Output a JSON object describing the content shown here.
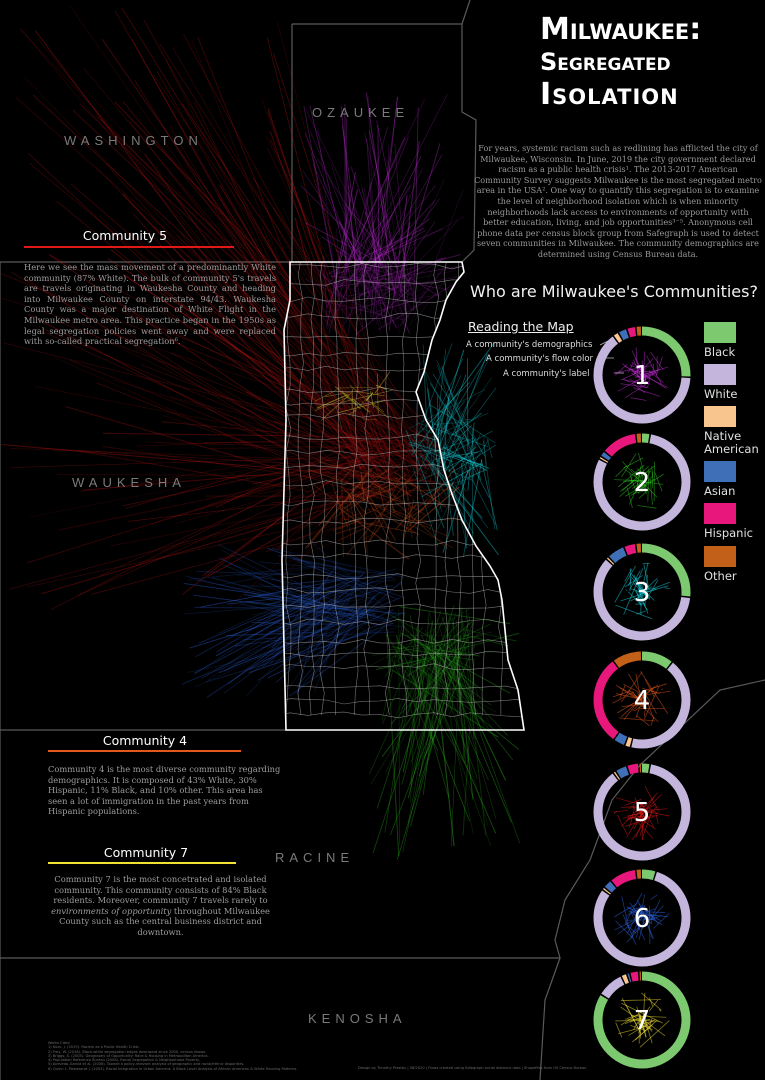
{
  "title": {
    "line1": "Milwaukee:",
    "line2": "Segregated",
    "line3": "Isolation"
  },
  "counties": {
    "ozaukee": "OZAUKEE",
    "washington": "WASHINGTON",
    "waukesha": "WAUKESHA",
    "racine": "RACINE",
    "kenosha": "KENOSHA"
  },
  "intro": "For years, systemic racism such as redlining has afflicted the city of Milwaukee, Wisconsin. In June, 2019 the city government declared racism as a public health crisis¹. The 2013-2017 American Community Survey suggests Milwaukee is the most segregated metro area in the USA². One way to quantify this segregation is to examine the level of neighborhood isolation which is when minority neighborhoods lack access to environments of opportunity with better education, living, and job opportunities³⁻⁵. Anonymous cell phone data per census block group from Safegraph is used to detect seven communities in Milwaukee. The community demographics are determined using Census Bureau data.",
  "community5": {
    "heading": "Community 5",
    "text": "Here we see the mass movement of a predominantly White community (87% White). The bulk of community 5's travels are travels originating in Waukesha County and heading into Milwaukee County on interstate 94/43. Waukesha County was a major destination of White Flight in the Milwaukee metro area. This practice began in the 1950s as legal segregation policies went away and were replaced with so-called practical segregation⁶."
  },
  "community4": {
    "heading": "Community 4",
    "text": "Community 4 is the most diverse community regarding demographics. It is composed of 43% White, 30% Hispanic, 11% Black, and 10% other. This area has seen a lot of immigration in the past years from Hispanic populations."
  },
  "community7": {
    "heading": "Community 7",
    "text_a": "Community 7 is the most concetrated and isolated community. This community consists of 84% Black residents. Moreover, community 7 travels rarely to ",
    "text_em": "environments of opportunity",
    "text_b": " throughout Milwaukee County such as the central business district and downtown."
  },
  "who_heading": "Who are Milwaukee's Communities?",
  "reading": {
    "heading": "Reading the Map",
    "demographics": "A community's demographics",
    "flow_color": "A community's flow color",
    "label": "A community's label"
  },
  "legend": [
    {
      "label": "Black",
      "color": "#7dc96f"
    },
    {
      "label": "White",
      "color": "#c4b5dc"
    },
    {
      "label": "Native American",
      "color": "#f9c58e"
    },
    {
      "label": "Asian",
      "color": "#3f6fb6"
    },
    {
      "label": "Hispanic",
      "color": "#e8177b"
    },
    {
      "label": "Other",
      "color": "#c2601a"
    }
  ],
  "communities": [
    {
      "label": "1",
      "flow_color": "#c12cd6",
      "demographics": {
        "Black": 0.26,
        "White": 0.64,
        "Native American": 0.02,
        "Asian": 0.03,
        "Hispanic": 0.03,
        "Other": 0.02
      }
    },
    {
      "label": "2",
      "flow_color": "#2ec51f",
      "demographics": {
        "Black": 0.03,
        "White": 0.8,
        "Native American": 0.01,
        "Asian": 0.02,
        "Hispanic": 0.12,
        "Other": 0.02
      }
    },
    {
      "label": "3",
      "flow_color": "#18d6e0",
      "demographics": {
        "Black": 0.27,
        "White": 0.6,
        "Native American": 0.01,
        "Asian": 0.06,
        "Hispanic": 0.04,
        "Other": 0.02
      }
    },
    {
      "label": "4",
      "flow_color": "#e3561c",
      "demographics": {
        "Black": 0.11,
        "White": 0.43,
        "Native American": 0.02,
        "Asian": 0.04,
        "Hispanic": 0.3,
        "Other": 0.1
      }
    },
    {
      "label": "5",
      "flow_color": "#e01818",
      "demographics": {
        "Black": 0.03,
        "White": 0.87,
        "Native American": 0.01,
        "Asian": 0.04,
        "Hispanic": 0.04,
        "Other": 0.01
      }
    },
    {
      "label": "6",
      "flow_color": "#2b62e0",
      "demographics": {
        "Black": 0.05,
        "White": 0.8,
        "Native American": 0.01,
        "Asian": 0.03,
        "Hispanic": 0.09,
        "Other": 0.02
      }
    },
    {
      "label": "7",
      "flow_color": "#f2e033",
      "demographics": {
        "Black": 0.84,
        "White": 0.09,
        "Native American": 0.02,
        "Asian": 0.01,
        "Hispanic": 0.03,
        "Other": 0.01
      }
    }
  ],
  "colors": {
    "community5_line": "#e01818",
    "community4_line": "#e3561c",
    "community7_line": "#f2e033",
    "county_border": "#5a5a5a"
  },
  "footnotes": [
    "Works Cited",
    "1) Kuzu, J. (2019). Racism as a Public Health Crisis.",
    "2) Frey, W. (2018). Black-white segregation edges downward since 2000, census shows.",
    "3) Briggs, X. (2005). Geography of Opportunity: Race & Housing in Metropolitan America.",
    "4) Population Reference Bureau (2008). Racial Segregation & Neighborhood Poverty.",
    "5) Acevedo-Garcia et al. (2008). Toward a policy-relevant analysis of geographic and racial/ethnic disparities.",
    "6) Quinn L. Pawasarat J. (2003). Racial Integration in Urban America: A Block Level Analysis of African American & White Housing Patterns."
  ],
  "credit": "Design by Timothy Prestby | 08/2020 | Flows created using Safegraph social distance data | Shapefiles from US Census Bureau"
}
